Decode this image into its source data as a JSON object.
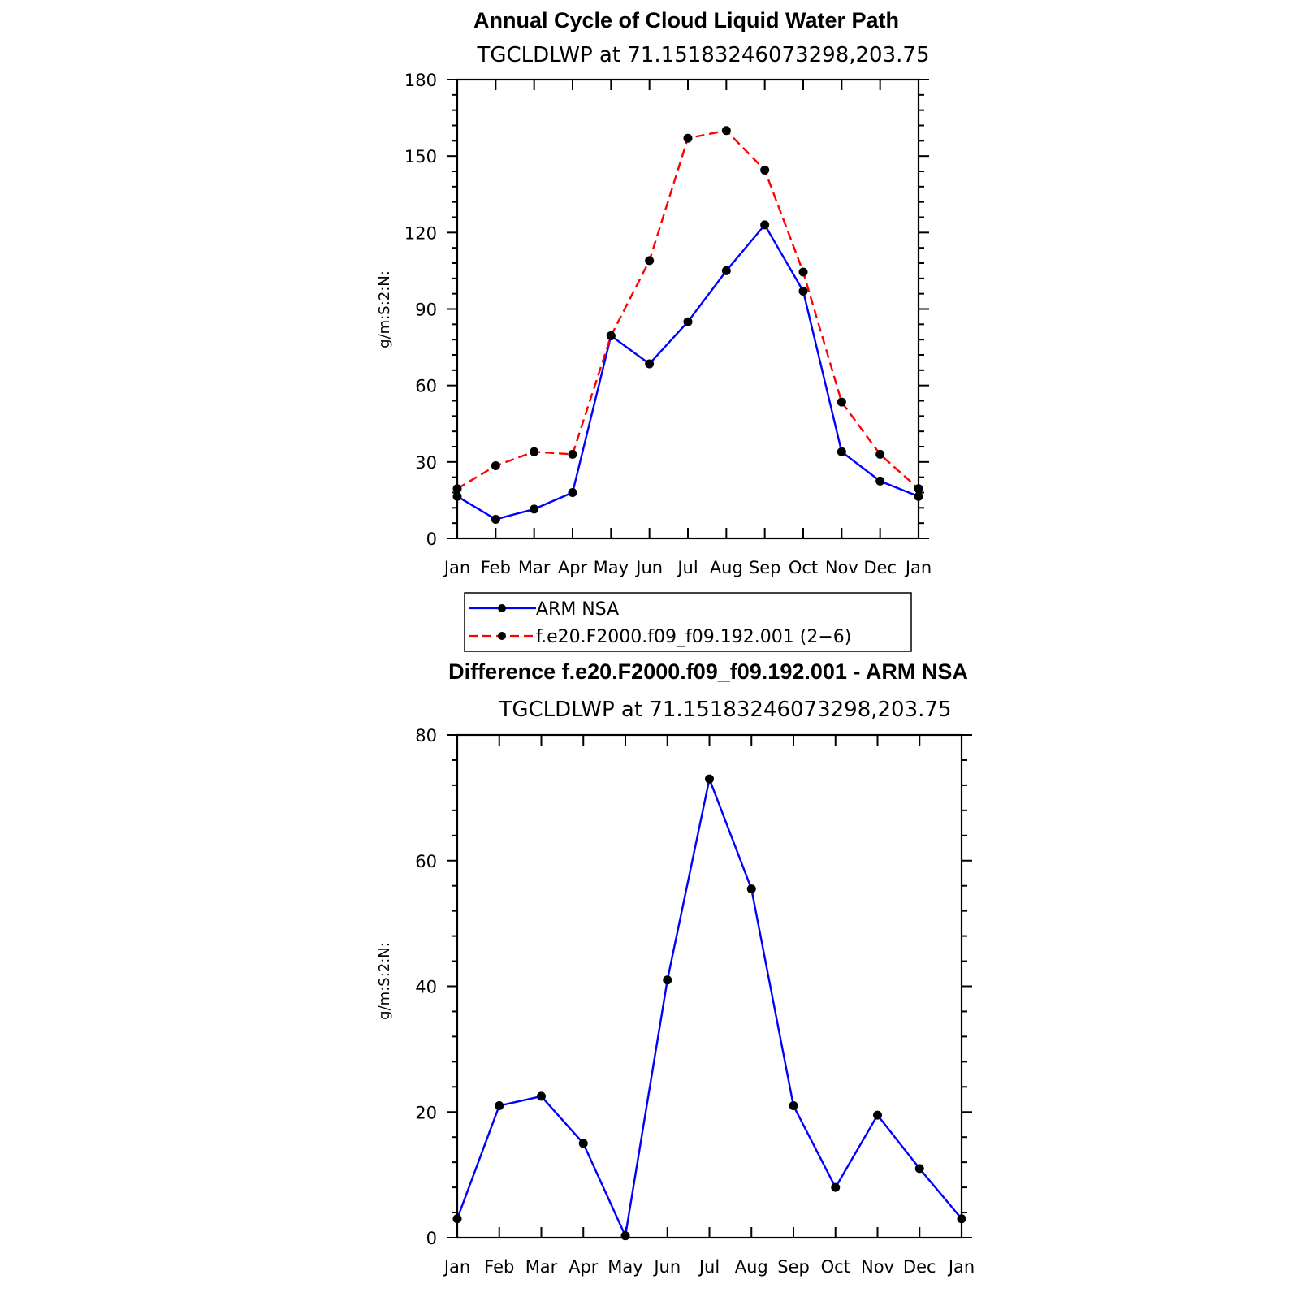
{
  "chart_data": [
    {
      "type": "line",
      "title": "Annual Cycle of Cloud Liquid Water Path",
      "subtitle": "TGCLDLWP  at  71.15183246073298,203.75",
      "xlabel": "",
      "ylabel": "g/m:S:2:N:",
      "categories": [
        "Jan",
        "Feb",
        "Mar",
        "Apr",
        "May",
        "Jun",
        "Jul",
        "Aug",
        "Sep",
        "Oct",
        "Nov",
        "Dec",
        "Jan"
      ],
      "ylim": [
        0,
        180
      ],
      "yticks": [
        0,
        30,
        60,
        90,
        120,
        150,
        180
      ],
      "grid": false,
      "legend_position": "bottom",
      "series": [
        {
          "name": "ARM  NSA",
          "color": "#0000ff",
          "dash": "solid",
          "values": [
            16.5,
            7.5,
            11.5,
            18,
            79.5,
            68.5,
            85,
            105,
            123,
            97,
            34,
            22.5,
            16.5
          ]
        },
        {
          "name": "f.e20.F2000.f09_f09.192.001 (2−6)",
          "color": "#ff0000",
          "dash": "dashed",
          "values": [
            19.5,
            28.5,
            34,
            33,
            79.5,
            109,
            157,
            160,
            144.5,
            104.5,
            53.5,
            33,
            19.5
          ]
        }
      ]
    },
    {
      "type": "line",
      "title": "Difference f.e20.F2000.f09_f09.192.001 - ARM NSA",
      "subtitle": "TGCLDLWP  at  71.15183246073298,203.75",
      "xlabel": "",
      "ylabel": "g/m:S:2:N:",
      "categories": [
        "Jan",
        "Feb",
        "Mar",
        "Apr",
        "May",
        "Jun",
        "Jul",
        "Aug",
        "Sep",
        "Oct",
        "Nov",
        "Dec",
        "Jan"
      ],
      "ylim": [
        0,
        80
      ],
      "yticks": [
        0,
        20,
        40,
        60,
        80
      ],
      "grid": false,
      "series": [
        {
          "name": "Difference",
          "color": "#0000ff",
          "dash": "solid",
          "values": [
            3,
            21,
            22.5,
            15,
            0.3,
            41,
            73,
            55.5,
            21,
            8,
            19.5,
            11,
            3
          ]
        }
      ]
    }
  ]
}
